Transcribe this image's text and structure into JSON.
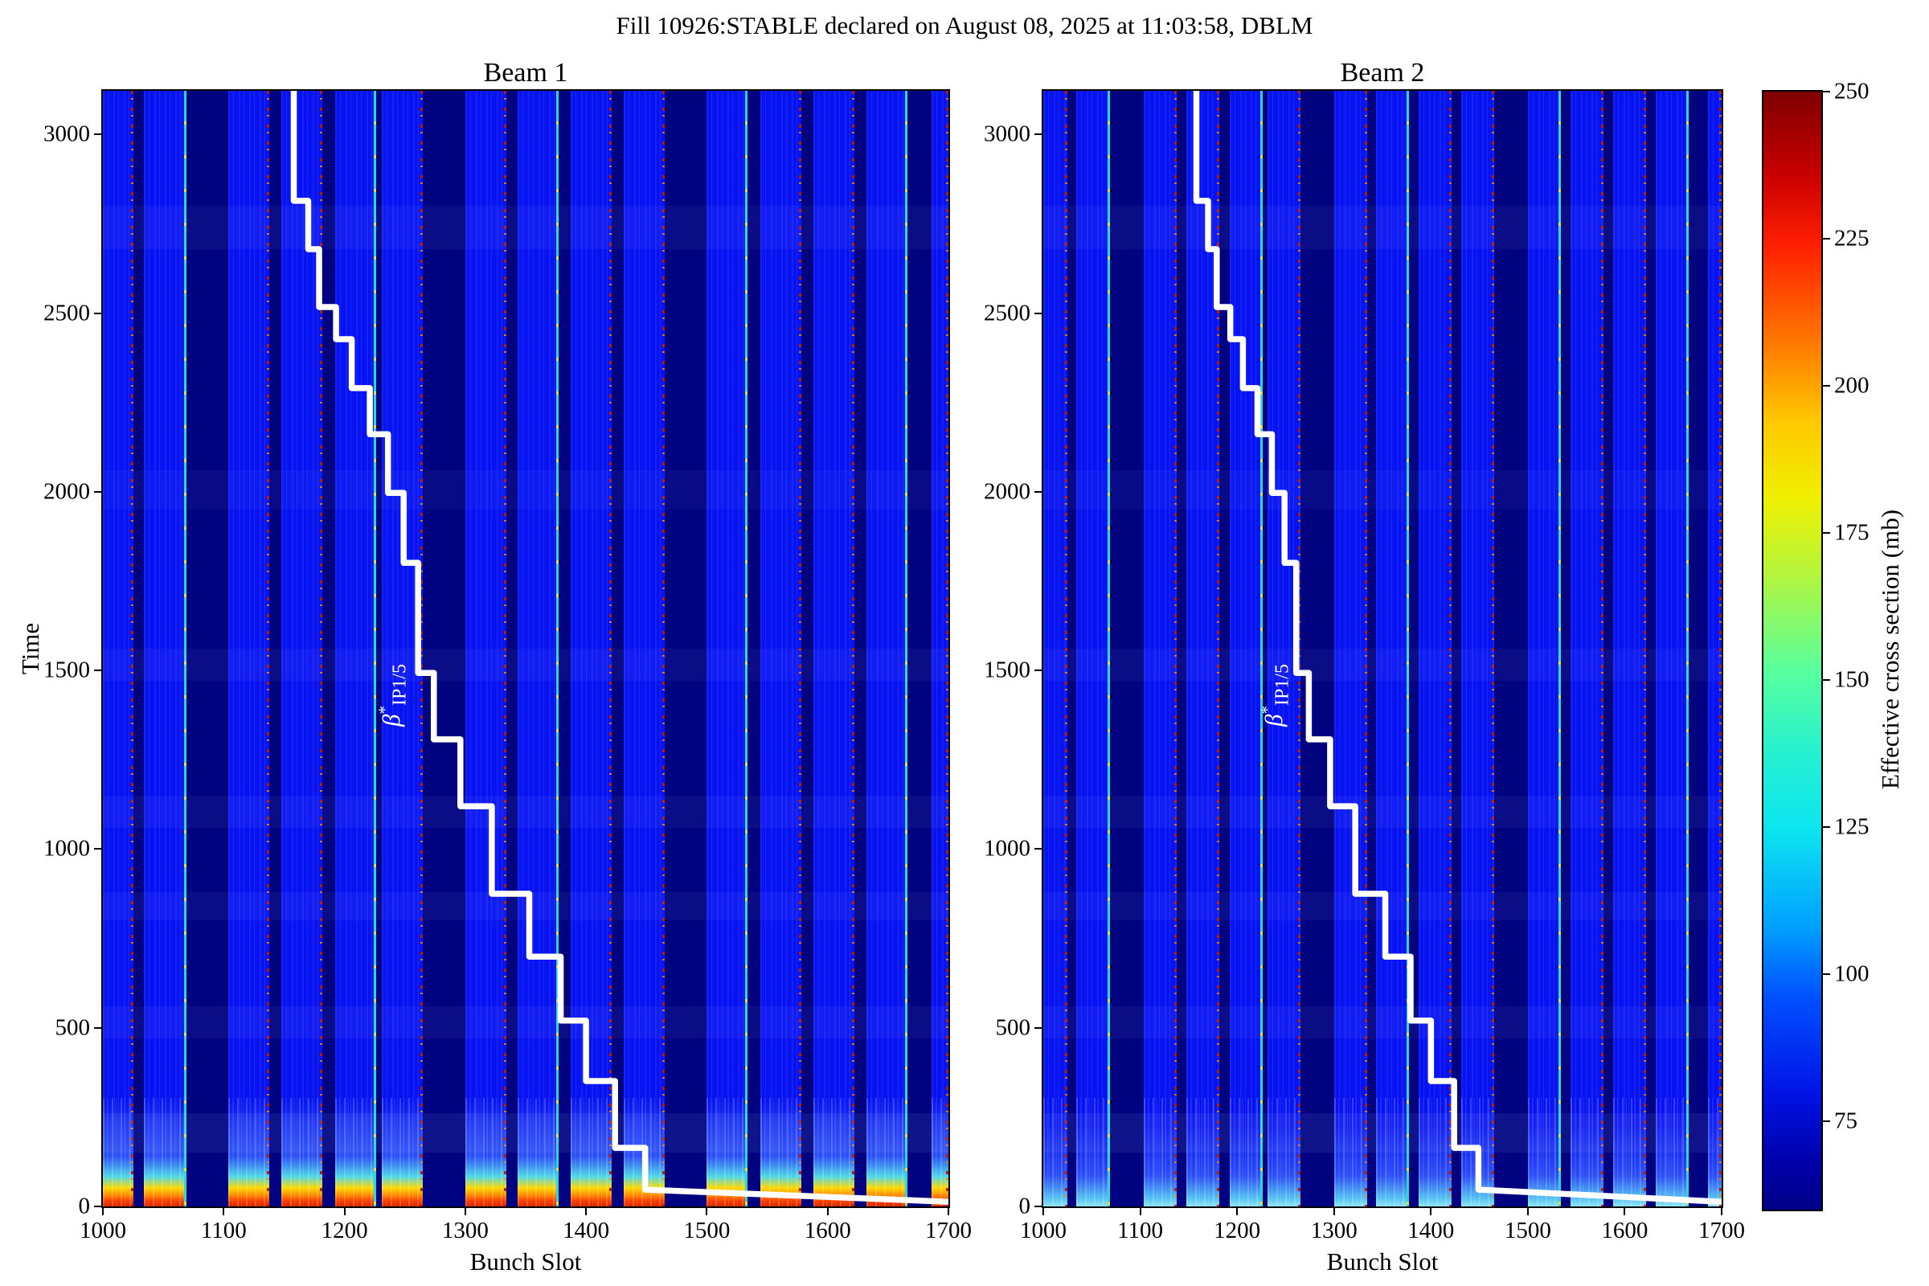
{
  "figure": {
    "title": "Fill 10926:STABLE declared on August 08, 2025 at 11:03:58, DBLM",
    "background_color": "#ffffff"
  },
  "chart_data": {
    "type": "heatmap",
    "panels": [
      {
        "title": "Beam 1",
        "xlabel": "Bunch Slot",
        "ylabel": "Time",
        "has_y_axis_label": true
      },
      {
        "title": "Beam 2",
        "xlabel": "Bunch Slot",
        "ylabel": "",
        "has_y_axis_label": false
      }
    ],
    "xlim": [
      1000,
      1700
    ],
    "ylim": [
      0,
      3122
    ],
    "x_ticks": [
      1000,
      1100,
      1200,
      1300,
      1400,
      1500,
      1600,
      1700
    ],
    "y_ticks": [
      0,
      500,
      1000,
      1500,
      2000,
      2500,
      3000
    ],
    "grid": false,
    "colors": {
      "train_blue": "#0713f2",
      "gap_navy": "#000380",
      "hot_red": "#ff3d00",
      "hot_yellow": "#ffd900",
      "cool_cyan": "#4fd9e8",
      "step_line": "#ffffff"
    },
    "trains": [
      [
        1000,
        1025
      ],
      [
        1034,
        1069
      ],
      [
        1104,
        1138
      ],
      [
        1148,
        1182
      ],
      [
        1192,
        1226
      ],
      [
        1231,
        1265
      ],
      [
        1300,
        1334
      ],
      [
        1343,
        1377
      ],
      [
        1387,
        1421
      ],
      [
        1431,
        1465
      ],
      [
        1500,
        1534
      ],
      [
        1544,
        1578
      ],
      [
        1588,
        1622
      ],
      [
        1632,
        1666
      ],
      [
        1686,
        1700
      ]
    ],
    "beta_star_label": {
      "base": "β",
      "sup": "*",
      "sub": "IP1/5"
    },
    "beta_star_label_anchor": {
      "bunch": 1240,
      "time": 1430
    },
    "beta_star_steps": [
      [
        1158,
        3122
      ],
      [
        1158,
        2814
      ],
      [
        1170,
        2814
      ],
      [
        1170,
        2679
      ],
      [
        1179,
        2679
      ],
      [
        1179,
        2517
      ],
      [
        1193,
        2517
      ],
      [
        1193,
        2427
      ],
      [
        1206,
        2427
      ],
      [
        1206,
        2290
      ],
      [
        1221,
        2290
      ],
      [
        1221,
        2161
      ],
      [
        1236,
        2161
      ],
      [
        1236,
        1997
      ],
      [
        1249,
        1997
      ],
      [
        1249,
        1801
      ],
      [
        1261,
        1801
      ],
      [
        1261,
        1493
      ],
      [
        1274,
        1493
      ],
      [
        1274,
        1307
      ],
      [
        1296,
        1307
      ],
      [
        1296,
        1120
      ],
      [
        1322,
        1120
      ],
      [
        1322,
        875
      ],
      [
        1353,
        875
      ],
      [
        1353,
        699
      ],
      [
        1379,
        699
      ],
      [
        1379,
        520
      ],
      [
        1400,
        520
      ],
      [
        1400,
        351
      ],
      [
        1424,
        351
      ],
      [
        1424,
        164
      ],
      [
        1449,
        164
      ],
      [
        1449,
        47
      ],
      [
        1700,
        13
      ]
    ],
    "colorbar": {
      "label": "Effective cross section (mb)",
      "ticks": [
        250,
        225,
        200,
        175,
        150,
        125,
        100,
        75
      ],
      "vmin": 60,
      "vmax": 250,
      "colormap": "jet",
      "gradient": [
        {
          "v": 250,
          "c": "#7f0000"
        },
        {
          "v": 236,
          "c": "#c80000"
        },
        {
          "v": 224,
          "c": "#ff1e00"
        },
        {
          "v": 207,
          "c": "#ff7a00"
        },
        {
          "v": 194,
          "c": "#ffc800"
        },
        {
          "v": 181,
          "c": "#f0f000"
        },
        {
          "v": 168,
          "c": "#b4f53c"
        },
        {
          "v": 152,
          "c": "#5aff9b"
        },
        {
          "v": 137,
          "c": "#23f0d2"
        },
        {
          "v": 125,
          "c": "#0ee6f0"
        },
        {
          "v": 108,
          "c": "#00a0ff"
        },
        {
          "v": 96,
          "c": "#0050ff"
        },
        {
          "v": 80,
          "c": "#0014e6"
        },
        {
          "v": 68,
          "c": "#0000aa"
        },
        {
          "v": 60,
          "c": "#000088"
        }
      ]
    }
  }
}
